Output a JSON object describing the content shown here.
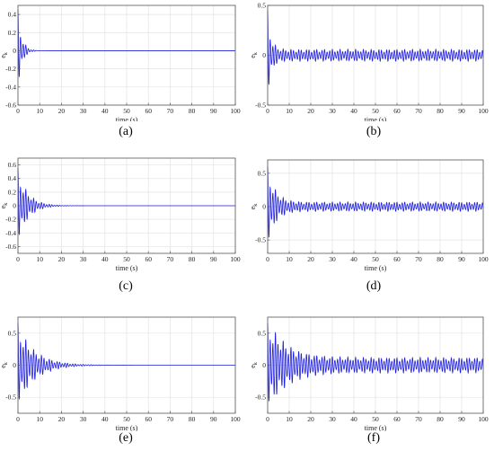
{
  "chart_data": [
    {
      "type": "line",
      "panel_label": "a",
      "xlabel": "time (s)",
      "ylabel": "e_k",
      "xlim": [
        0,
        100
      ],
      "ylim": [
        -0.6,
        0.5
      ],
      "x_ticks": [
        0,
        10,
        20,
        30,
        40,
        50,
        60,
        70,
        80,
        90,
        100
      ],
      "y_ticks": [
        -0.6,
        -0.4,
        -0.2,
        0,
        0.2,
        0.4
      ],
      "y_tick_labels": [
        "-0.6",
        "-0.4",
        "-0.2",
        "0",
        "0.2",
        "0.4"
      ],
      "grid": true,
      "line_color": "#1f1fe0",
      "signal": {
        "initial_amplitude": 0.45,
        "decay_rate": 0.55,
        "steady_amplitude": 0.0,
        "period": 1.2,
        "settle_time": 8
      }
    },
    {
      "type": "line",
      "panel_label": "b",
      "xlabel": "time (s)",
      "ylabel": "e_k",
      "xlim": [
        0,
        100
      ],
      "ylim": [
        -0.5,
        0.5
      ],
      "x_ticks": [
        0,
        10,
        20,
        30,
        40,
        50,
        60,
        70,
        80,
        90,
        100
      ],
      "y_ticks": [
        -0.5,
        0,
        0.5
      ],
      "y_tick_labels": [
        "-0.5",
        "0",
        "0.5"
      ],
      "grid": true,
      "line_color": "#1f1fe0",
      "signal": {
        "initial_amplitude": 0.45,
        "decay_rate": 0.6,
        "steady_amplitude": 0.06,
        "period": 1.2,
        "settle_time": 6
      }
    },
    {
      "type": "line",
      "panel_label": "c",
      "xlabel": "time (s)",
      "ylabel": "e_k",
      "xlim": [
        0,
        100
      ],
      "ylim": [
        -0.7,
        0.7
      ],
      "x_ticks": [
        0,
        10,
        20,
        30,
        40,
        50,
        60,
        70,
        80,
        90,
        100
      ],
      "y_ticks": [
        -0.6,
        -0.4,
        -0.2,
        0,
        0.2,
        0.4,
        0.6
      ],
      "y_tick_labels": [
        "-0.6",
        "-0.4",
        "-0.2",
        "0",
        "0.2",
        "0.4",
        "0.6"
      ],
      "grid": true,
      "line_color": "#1f1fe0",
      "signal": {
        "initial_amplitude": 0.55,
        "decay_rate": 0.22,
        "steady_amplitude": 0.0,
        "period": 1.2,
        "settle_time": 22
      }
    },
    {
      "type": "line",
      "panel_label": "d",
      "xlabel": "time (s)",
      "ylabel": "e_k",
      "xlim": [
        0,
        100
      ],
      "ylim": [
        -0.7,
        0.7
      ],
      "x_ticks": [
        0,
        10,
        20,
        30,
        40,
        50,
        60,
        70,
        80,
        90,
        100
      ],
      "y_ticks": [
        -0.5,
        0,
        0.5
      ],
      "y_tick_labels": [
        "-0.5",
        "0",
        "0.5"
      ],
      "grid": true,
      "line_color": "#1f1fe0",
      "signal": {
        "initial_amplitude": 0.6,
        "decay_rate": 0.3,
        "steady_amplitude": 0.07,
        "period": 1.2,
        "settle_time": 15
      }
    },
    {
      "type": "line",
      "panel_label": "e",
      "xlabel": "time (s)",
      "ylabel": "e_k",
      "xlim": [
        0,
        100
      ],
      "ylim": [
        -0.75,
        0.75
      ],
      "x_ticks": [
        0,
        10,
        20,
        30,
        40,
        50,
        60,
        70,
        80,
        90,
        100
      ],
      "y_ticks": [
        -0.5,
        0,
        0.5
      ],
      "y_tick_labels": [
        "-0.5",
        "0",
        "0.5"
      ],
      "grid": true,
      "line_color": "#1f1fe0",
      "signal": {
        "initial_amplitude": 0.65,
        "decay_rate": 0.13,
        "steady_amplitude": 0.0,
        "period": 1.2,
        "settle_time": 32
      }
    },
    {
      "type": "line",
      "panel_label": "f",
      "xlabel": "time (s)",
      "ylabel": "e_k",
      "xlim": [
        0,
        100
      ],
      "ylim": [
        -0.75,
        0.75
      ],
      "x_ticks": [
        0,
        10,
        20,
        30,
        40,
        50,
        60,
        70,
        80,
        90,
        100
      ],
      "y_ticks": [
        -0.5,
        0,
        0.5
      ],
      "y_tick_labels": [
        "-0.5",
        "0",
        "0.5"
      ],
      "grid": true,
      "line_color": "#1f1fe0",
      "signal": {
        "initial_amplitude": 0.65,
        "decay_rate": 0.12,
        "steady_amplitude": 0.12,
        "period": 1.2,
        "settle_time": 25
      }
    }
  ],
  "captions": [
    "(a)",
    "(b)",
    "(c)",
    "(d)",
    "(e)",
    "(f)"
  ]
}
